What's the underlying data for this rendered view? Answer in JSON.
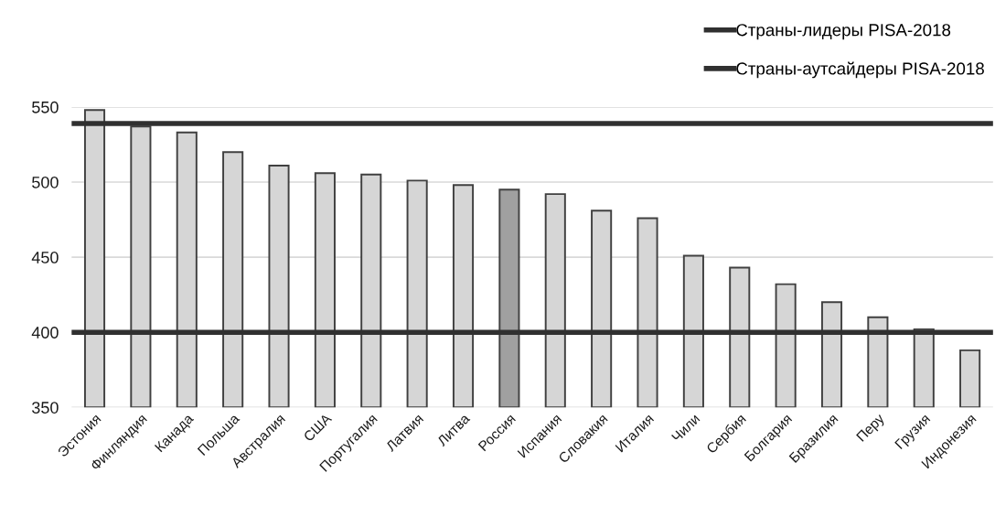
{
  "chart_data": {
    "type": "bar",
    "categories": [
      "Эстония",
      "Финляндия",
      "Канада",
      "Польша",
      "Австралия",
      "США",
      "Португалия",
      "Латвия",
      "Литва",
      "Россия",
      "Испания",
      "Словакия",
      "Италия",
      "Чили",
      "Сербия",
      "Болгария",
      "Бразилия",
      "Перу",
      "Грузия",
      "Индонезия"
    ],
    "values": [
      548,
      537,
      533,
      520,
      511,
      506,
      505,
      501,
      498,
      495,
      492,
      481,
      476,
      451,
      443,
      432,
      420,
      410,
      402,
      388
    ],
    "colors": [
      "#d6d6d6",
      "#d6d6d6",
      "#d6d6d6",
      "#d6d6d6",
      "#d6d6d6",
      "#d6d6d6",
      "#d6d6d6",
      "#d6d6d6",
      "#d6d6d6",
      "#a0a0a0",
      "#d6d6d6",
      "#d6d6d6",
      "#d6d6d6",
      "#d6d6d6",
      "#d6d6d6",
      "#d6d6d6",
      "#d6d6d6",
      "#d6d6d6",
      "#d6d6d6",
      "#d6d6d6"
    ],
    "ylim": [
      350,
      550
    ],
    "yticks": [
      350,
      400,
      450,
      500,
      550
    ],
    "grid": "y",
    "ref_lines": [
      {
        "axis": "y",
        "value": 539,
        "label": "Страны-лидеры PISA-2018",
        "color": "#303030"
      },
      {
        "axis": "y",
        "value": 400,
        "label": "Страны-аутсайдеры PISA-2018",
        "color": "#303030"
      }
    ],
    "legend": "top right"
  }
}
